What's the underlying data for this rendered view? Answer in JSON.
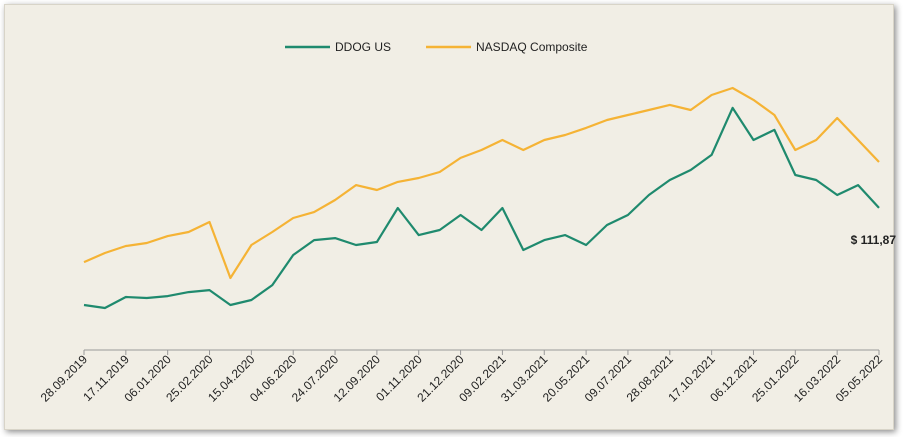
{
  "chart_data": {
    "type": "line",
    "categories": [
      "28.09.2019",
      null,
      "17.11.2019",
      null,
      "06.01.2020",
      null,
      "25.02.2020",
      null,
      "15.04.2020",
      null,
      "04.06.2020",
      null,
      "24.07.2020",
      null,
      "12.09.2020",
      null,
      "01.11.2020",
      null,
      "21.12.2020",
      null,
      "09.02.2021",
      null,
      "31.03.2021",
      null,
      "20.05.2021",
      null,
      "09.07.2021",
      null,
      "28.08.2021",
      null,
      "17.10.2021",
      null,
      "06.12.2021",
      null,
      "25.01.2022",
      null,
      "16.03.2022",
      null,
      "05.05.2022"
    ],
    "series": [
      {
        "name": "DDOG US",
        "color": "#1f8a6e",
        "values": [
          33.8,
          31.4,
          40.2,
          39.4,
          41.0,
          44.2,
          45.8,
          33.8,
          37.8,
          49.8,
          74.0,
          86.0,
          87.6,
          82.0,
          84.4,
          111.8,
          90.0,
          94.1,
          106.1,
          94.1,
          111.8,
          78.0,
          86.0,
          90.0,
          82.0,
          98.1,
          106.1,
          122.2,
          134.3,
          142.3,
          154.4,
          192.2,
          166.4,
          174.5,
          138.3,
          134.3,
          122.2,
          130.2,
          111.87
        ],
        "value_labels": [
          null,
          null,
          null,
          null,
          null,
          null,
          null,
          null,
          null,
          null,
          null,
          null,
          null,
          null,
          null,
          null,
          null,
          null,
          null,
          null,
          null,
          null,
          null,
          null,
          null,
          null,
          null,
          null,
          null,
          null,
          null,
          null,
          null,
          null,
          null,
          null,
          null,
          null,
          "$ 111,87"
        ]
      },
      {
        "name": "NASDAQ Composite",
        "color": "#f5b335",
        "values": [
          68.3,
          75.6,
          81.2,
          83.6,
          89.2,
          92.5,
          100.5,
          55.5,
          82.0,
          92.5,
          103.7,
          108.5,
          118.2,
          130.2,
          126.2,
          132.7,
          135.9,
          140.7,
          152.0,
          158.4,
          166.4,
          158.4,
          166.4,
          170.4,
          176.1,
          182.5,
          186.5,
          190.5,
          194.6,
          190.5,
          202.6,
          208.2,
          198.6,
          186.5,
          158.4,
          166.4,
          184.1,
          166.4,
          148.7
        ]
      }
    ],
    "legend": "top"
  }
}
